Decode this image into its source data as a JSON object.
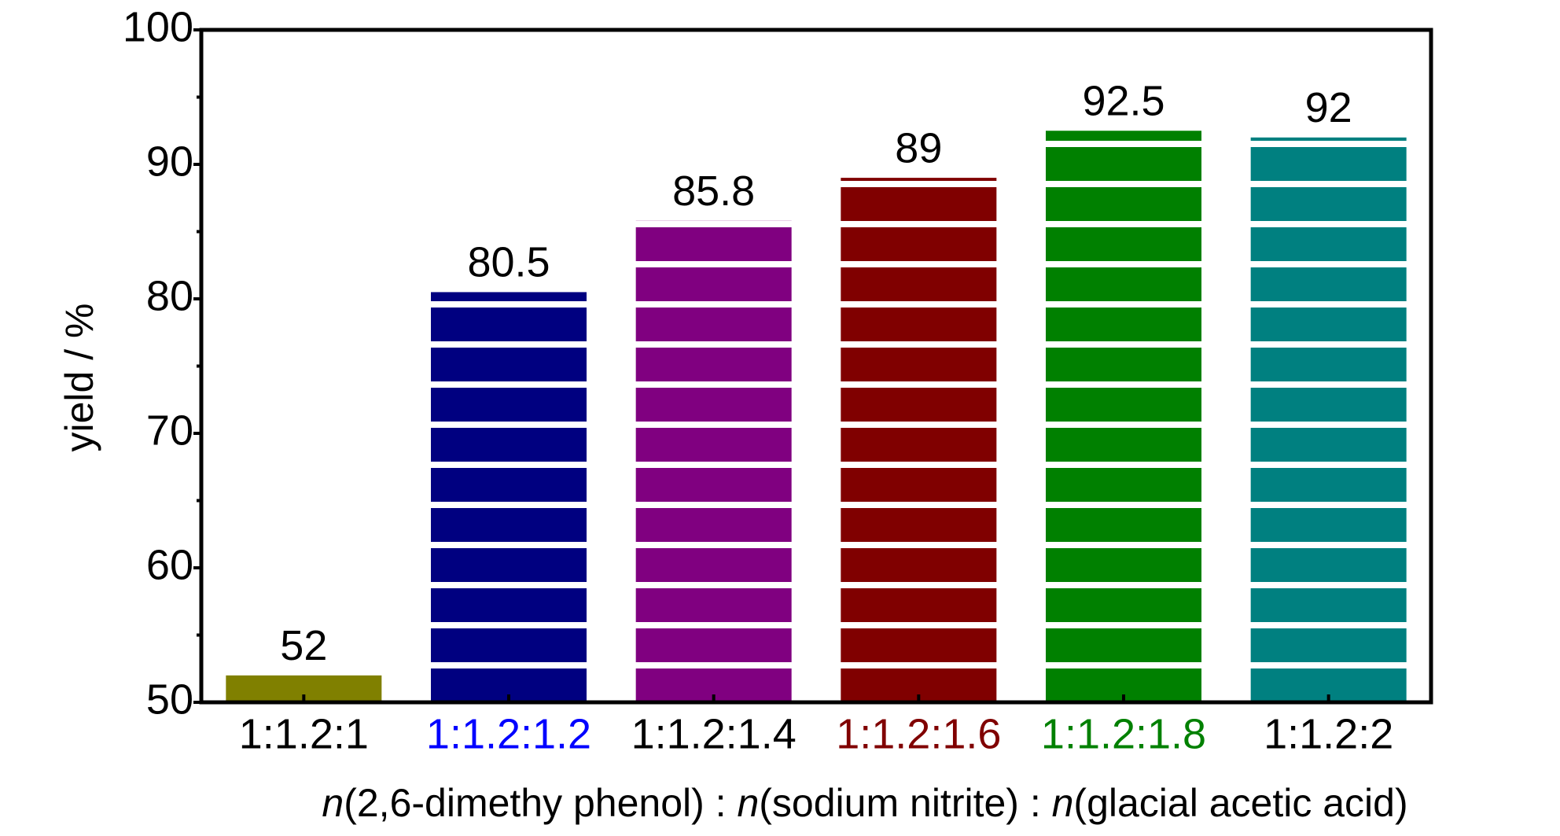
{
  "chart_data": {
    "type": "bar",
    "y_label": "yield / %",
    "x_label_parts": [
      {
        "text": "n",
        "italic": true
      },
      {
        "text": "(2,6-dimethy phenol) : ",
        "italic": false
      },
      {
        "text": "n",
        "italic": true
      },
      {
        "text": "(sodium nitrite) : ",
        "italic": false
      },
      {
        "text": "n",
        "italic": true
      },
      {
        "text": "(glacial acetic acid)",
        "italic": false
      }
    ],
    "categories": [
      "1:1.2:1",
      "1:1.2:1.2",
      "1:1.2:1.4",
      "1:1.2:1.6",
      "1:1.2:1.8",
      "1:1.2:2"
    ],
    "category_colors": [
      "#000000",
      "#0000ff",
      "#000000",
      "#800000",
      "#008000",
      "#000000"
    ],
    "values": [
      52,
      80.5,
      85.8,
      89,
      92.5,
      92
    ],
    "colors": [
      "#808000",
      "#000080",
      "#800080",
      "#800000",
      "#008000",
      "#008080"
    ],
    "ylim": [
      50,
      100
    ],
    "yticks": [
      50,
      60,
      70,
      80,
      90,
      100
    ],
    "yminorticks": [
      55,
      65,
      75,
      85,
      95
    ],
    "striped": true
  }
}
